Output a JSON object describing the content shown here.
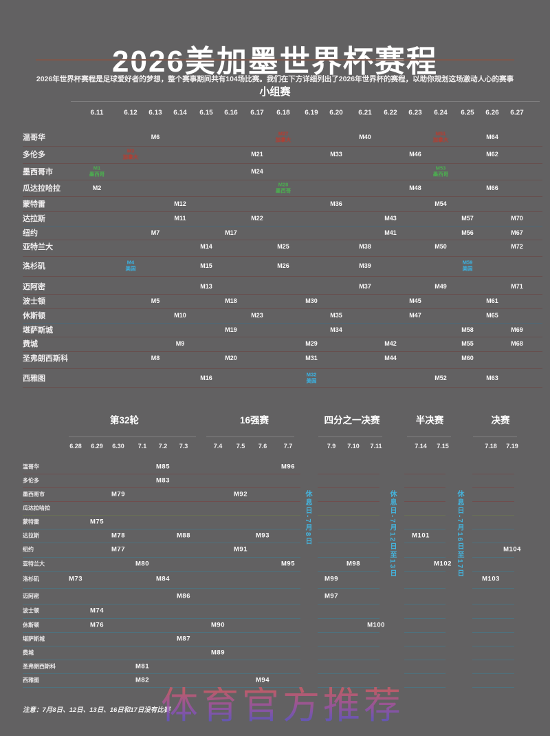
{
  "title": "2026美加墨世界杯赛程",
  "subtitle": "2026年世界杯赛程是足球爱好者的梦想，整个赛事期间共有104场比赛。我们在下方详细列出了2026年世界杯的赛程，以助你规划这场激动人心的赛事",
  "note": "注意：7月8日、12日、13日、16日和17日没有比赛",
  "watermark": "体育官方推荐",
  "colors": {
    "background": "#626162",
    "mexico_green": "#4cae50",
    "usa_blue": "#3ab5e6",
    "canada_red": "#c0392b",
    "rest_day_blue": "#45b3dc",
    "title_rule": "#7d584c"
  },
  "chart_data": {
    "type": "table",
    "group_stage": {
      "label": "小组赛",
      "dates": [
        "6.11",
        "6.12",
        "6.13",
        "6.14",
        "6.15",
        "6.16",
        "6.17",
        "6.18",
        "6.19",
        "6.20",
        "6.21",
        "6.22",
        "6.23",
        "6.24",
        "6.25",
        "6.26",
        "6.27"
      ],
      "rows": [
        {
          "city": "温哥华",
          "matches": [
            {
              "date": "6.13",
              "m": "M6"
            },
            {
              "date": "6.18",
              "m": "M27",
              "country": "加拿大",
              "type": "canada"
            },
            {
              "date": "6.21",
              "m": "M40"
            },
            {
              "date": "6.24",
              "m": "M51",
              "country": "加拿大",
              "type": "canada"
            },
            {
              "date": "6.26",
              "m": "M64"
            }
          ]
        },
        {
          "city": "多伦多",
          "matches": [
            {
              "date": "6.12",
              "m": "M3",
              "country": "加拿大",
              "type": "canada"
            },
            {
              "date": "6.17",
              "m": "M21"
            },
            {
              "date": "6.20",
              "m": "M33"
            },
            {
              "date": "6.23",
              "m": "M46"
            },
            {
              "date": "6.26",
              "m": "M62"
            }
          ]
        },
        {
          "city": "墨西哥市",
          "matches": [
            {
              "date": "6.11",
              "m": "M1",
              "country": "墨西哥",
              "type": "mexico"
            },
            {
              "date": "6.17",
              "m": "M24"
            },
            {
              "date": "6.24",
              "m": "M53",
              "country": "墨西哥",
              "type": "mexico"
            }
          ]
        },
        {
          "city": "瓜达拉哈拉",
          "matches": [
            {
              "date": "6.11",
              "m": "M2"
            },
            {
              "date": "6.18",
              "m": "M28",
              "country": "墨西哥",
              "type": "mexico"
            },
            {
              "date": "6.23",
              "m": "M48"
            },
            {
              "date": "6.26",
              "m": "M66"
            }
          ]
        },
        {
          "city": "蒙特雷",
          "matches": [
            {
              "date": "6.14",
              "m": "M12"
            },
            {
              "date": "6.20",
              "m": "M36"
            },
            {
              "date": "6.24",
              "m": "M54"
            }
          ]
        },
        {
          "city": "达拉斯",
          "matches": [
            {
              "date": "6.14",
              "m": "M11"
            },
            {
              "date": "6.17",
              "m": "M22"
            },
            {
              "date": "6.22",
              "m": "M43"
            },
            {
              "date": "6.25",
              "m": "M57"
            },
            {
              "date": "6.27",
              "m": "M70"
            }
          ]
        },
        {
          "city": "纽约",
          "matches": [
            {
              "date": "6.13",
              "m": "M7"
            },
            {
              "date": "6.16",
              "m": "M17"
            },
            {
              "date": "6.22",
              "m": "M41"
            },
            {
              "date": "6.25",
              "m": "M56"
            },
            {
              "date": "6.27",
              "m": "M67"
            }
          ]
        },
        {
          "city": "亚特兰大",
          "matches": [
            {
              "date": "6.15",
              "m": "M14"
            },
            {
              "date": "6.18",
              "m": "M25"
            },
            {
              "date": "6.21",
              "m": "M38"
            },
            {
              "date": "6.24",
              "m": "M50"
            },
            {
              "date": "6.27",
              "m": "M72"
            }
          ]
        },
        {
          "city": "洛杉矶",
          "matches": [
            {
              "date": "6.12",
              "m": "M4",
              "country": "美国",
              "type": "usa"
            },
            {
              "date": "6.15",
              "m": "M15"
            },
            {
              "date": "6.18",
              "m": "M26"
            },
            {
              "date": "6.21",
              "m": "M39"
            },
            {
              "date": "6.25",
              "m": "M59",
              "country": "美国",
              "type": "usa"
            }
          ]
        },
        {
          "city": "迈阿密",
          "matches": [
            {
              "date": "6.15",
              "m": "M13"
            },
            {
              "date": "6.21",
              "m": "M37"
            },
            {
              "date": "6.24",
              "m": "M49"
            },
            {
              "date": "6.27",
              "m": "M71"
            }
          ]
        },
        {
          "city": "波士顿",
          "matches": [
            {
              "date": "6.13",
              "m": "M5"
            },
            {
              "date": "6.16",
              "m": "M18"
            },
            {
              "date": "6.19",
              "m": "M30"
            },
            {
              "date": "6.23",
              "m": "M45"
            },
            {
              "date": "6.26",
              "m": "M61"
            }
          ]
        },
        {
          "city": "休斯顿",
          "matches": [
            {
              "date": "6.14",
              "m": "M10"
            },
            {
              "date": "6.17",
              "m": "M23"
            },
            {
              "date": "6.20",
              "m": "M35"
            },
            {
              "date": "6.23",
              "m": "M47"
            },
            {
              "date": "6.26",
              "m": "M65"
            }
          ]
        },
        {
          "city": "堪萨斯城",
          "matches": [
            {
              "date": "6.16",
              "m": "M19"
            },
            {
              "date": "6.20",
              "m": "M34"
            },
            {
              "date": "6.25",
              "m": "M58"
            },
            {
              "date": "6.27",
              "m": "M69"
            }
          ]
        },
        {
          "city": "费城",
          "matches": [
            {
              "date": "6.14",
              "m": "M9"
            },
            {
              "date": "6.19",
              "m": "M29"
            },
            {
              "date": "6.22",
              "m": "M42"
            },
            {
              "date": "6.25",
              "m": "M55"
            },
            {
              "date": "6.27",
              "m": "M68"
            }
          ]
        },
        {
          "city": "圣弗朗西斯科",
          "matches": [
            {
              "date": "6.13",
              "m": "M8"
            },
            {
              "date": "6.16",
              "m": "M20"
            },
            {
              "date": "6.19",
              "m": "M31"
            },
            {
              "date": "6.22",
              "m": "M44"
            },
            {
              "date": "6.25",
              "m": "M60"
            }
          ]
        },
        {
          "city": "西雅图",
          "matches": [
            {
              "date": "6.15",
              "m": "M16"
            },
            {
              "date": "6.19",
              "m": "M32",
              "country": "美国",
              "type": "usa"
            },
            {
              "date": "6.24",
              "m": "M52"
            },
            {
              "date": "6.26",
              "m": "M63"
            }
          ]
        }
      ]
    },
    "knockout": {
      "sections": [
        {
          "label": "第32轮",
          "dates": [
            "6.28",
            "6.29",
            "6.30",
            "7.1",
            "7.2",
            "7.3"
          ]
        },
        {
          "label": "16强赛",
          "dates": [
            "7.4",
            "7.5",
            "7.6",
            "7.7"
          ]
        },
        {
          "label": "四分之一决赛",
          "dates": [
            "7.9",
            "7.10",
            "7.11"
          ]
        },
        {
          "label": "半决赛",
          "dates": [
            "7.14",
            "7.15"
          ]
        },
        {
          "label": "决赛",
          "dates": [
            "7.18",
            "7.19"
          ]
        }
      ],
      "rest_days": [
        "休息日-7月8日",
        "休息日-7月12日至13日",
        "休息日-7月16日至17日"
      ],
      "rows": [
        {
          "city": "温哥华",
          "matches": [
            {
              "date": "7.2",
              "m": "M85"
            },
            {
              "date": "7.7",
              "m": "M96"
            }
          ]
        },
        {
          "city": "多伦多",
          "matches": [
            {
              "date": "7.2",
              "m": "M83"
            }
          ]
        },
        {
          "city": "墨西哥市",
          "matches": [
            {
              "date": "6.30",
              "m": "M79"
            },
            {
              "date": "7.5",
              "m": "M92"
            }
          ]
        },
        {
          "city": "瓜达拉哈拉",
          "matches": []
        },
        {
          "city": "蒙特雷",
          "matches": [
            {
              "date": "6.29",
              "m": "M75"
            }
          ]
        },
        {
          "city": "达拉斯",
          "matches": [
            {
              "date": "6.30",
              "m": "M78"
            },
            {
              "date": "7.3",
              "m": "M88"
            },
            {
              "date": "7.6",
              "m": "M93"
            },
            {
              "date": "7.14",
              "m": "M101"
            }
          ]
        },
        {
          "city": "纽约",
          "matches": [
            {
              "date": "6.30",
              "m": "M77"
            },
            {
              "date": "7.5",
              "m": "M91"
            },
            {
              "date": "7.19",
              "m": "M104"
            }
          ]
        },
        {
          "city": "亚特兰大",
          "matches": [
            {
              "date": "7.1",
              "m": "M80"
            },
            {
              "date": "7.7",
              "m": "M95"
            },
            {
              "date": "7.10",
              "m": "M98"
            },
            {
              "date": "7.15",
              "m": "M102"
            }
          ]
        },
        {
          "city": "洛杉矶",
          "matches": [
            {
              "date": "6.28",
              "m": "M73"
            },
            {
              "date": "7.2",
              "m": "M84"
            },
            {
              "date": "7.9",
              "m": "M99"
            },
            {
              "date": "7.18",
              "m": "M103"
            }
          ]
        },
        {
          "city": "迈阿密",
          "matches": [
            {
              "date": "7.3",
              "m": "M86"
            },
            {
              "date": "7.9",
              "m": "M97"
            }
          ]
        },
        {
          "city": "波士顿",
          "matches": [
            {
              "date": "6.29",
              "m": "M74"
            }
          ]
        },
        {
          "city": "休斯顿",
          "matches": [
            {
              "date": "6.29",
              "m": "M76"
            },
            {
              "date": "7.4",
              "m": "M90"
            },
            {
              "date": "7.11",
              "m": "M100"
            }
          ]
        },
        {
          "city": "堪萨斯城",
          "matches": [
            {
              "date": "7.3",
              "m": "M87"
            }
          ]
        },
        {
          "city": "费城",
          "matches": [
            {
              "date": "7.4",
              "m": "M89"
            }
          ]
        },
        {
          "city": "圣弗朗西斯科",
          "matches": [
            {
              "date": "7.1",
              "m": "M81"
            }
          ]
        },
        {
          "city": "西雅图",
          "matches": [
            {
              "date": "7.1",
              "m": "M82"
            },
            {
              "date": "7.6",
              "m": "M94"
            }
          ]
        }
      ]
    }
  }
}
